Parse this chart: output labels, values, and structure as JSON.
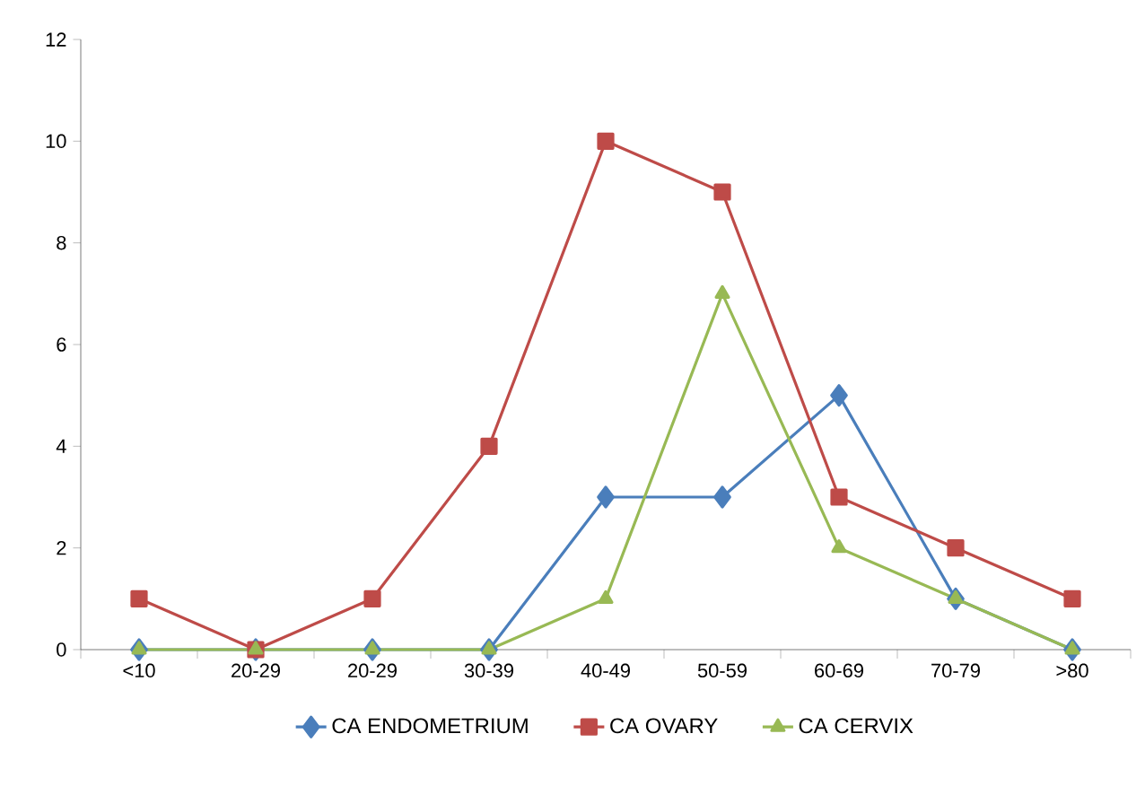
{
  "chart_data": {
    "type": "line",
    "categories": [
      "<10",
      "20-29",
      "20-29",
      "30-39",
      "40-49",
      "50-59",
      "60-69",
      "70-79",
      ">80"
    ],
    "series": [
      {
        "name": "CA ENDOMETRIUM",
        "color": "#4a7ebb",
        "marker": "diamond",
        "values": [
          0,
          0,
          0,
          0,
          3,
          3,
          5,
          1,
          0
        ]
      },
      {
        "name": "CA OVARY",
        "color": "#be4b48",
        "marker": "square",
        "values": [
          1,
          0,
          1,
          4,
          10,
          9,
          3,
          2,
          1
        ]
      },
      {
        "name": "CA CERVIX",
        "color": "#98b954",
        "marker": "triangle",
        "values": [
          0,
          0,
          0,
          0,
          1,
          7,
          2,
          1,
          0
        ]
      }
    ],
    "ylim": [
      0,
      12
    ],
    "yticks": [
      0,
      2,
      4,
      6,
      8,
      10,
      12
    ],
    "grid": false,
    "legend": "bottom",
    "line_style": "solid"
  }
}
